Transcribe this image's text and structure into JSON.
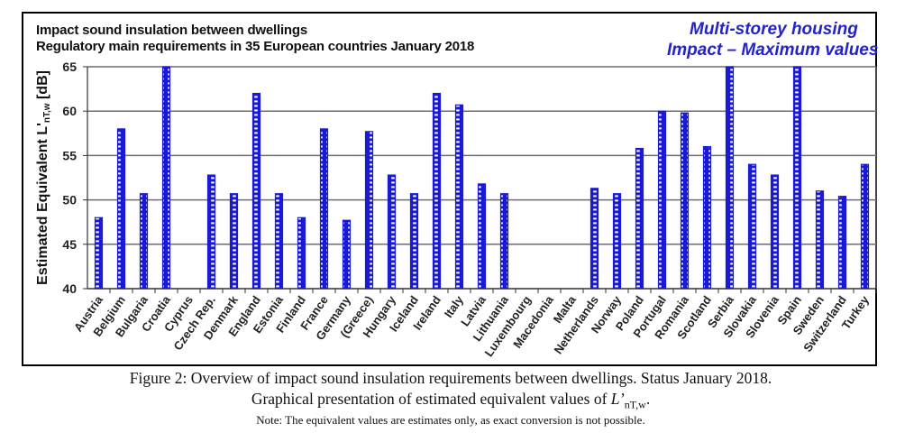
{
  "chart_data": {
    "type": "bar",
    "title": "Impact sound insulation between dwellings",
    "subtitle": "Regulatory main requirements in 35 European countries January 2018",
    "annotation": [
      "Multi-storey housing",
      "Impact – Maximum values"
    ],
    "xlabel": "",
    "ylabel": "Estimated Equivalent L'nT,w [dB]",
    "ylabel_parts": {
      "main": "Estimated Equivalent L'",
      "sub": "nT,w",
      "unit": " [dB]"
    },
    "ylim": [
      40,
      65
    ],
    "yticks": [
      40,
      45,
      50,
      55,
      60,
      65
    ],
    "grid": true,
    "legend": "none",
    "bar_color": "#1a1ad6",
    "categories": [
      "Austria",
      "Belgium",
      "Bulgaria",
      "Croatia",
      "Cyprus",
      "Czech Rep.",
      "Denmark",
      "England",
      "Estonia",
      "Finland",
      "France",
      "Germany",
      "(Greece)",
      "Hungary",
      "Iceland",
      "Ireland",
      "Italy",
      "Latvia",
      "Lithuania",
      "Luxembourg",
      "Macedonia",
      "Malta",
      "Netherlands",
      "Norway",
      "Poland",
      "Portugal",
      "Romania",
      "Scotland",
      "Serbia",
      "Slovakia",
      "Slovenia",
      "Spain",
      "Sweden",
      "Switzerland",
      "Turkey"
    ],
    "values": [
      48,
      58,
      50.7,
      65,
      null,
      52.8,
      50.7,
      62,
      50.7,
      48,
      58,
      47.7,
      57.7,
      52.8,
      50.7,
      62,
      60.7,
      51.8,
      50.7,
      null,
      null,
      null,
      51.3,
      50.7,
      55.8,
      60,
      59.8,
      56,
      65,
      54,
      52.8,
      65,
      51,
      50.4,
      54
    ]
  },
  "caption": {
    "line1": "Figure 2: Overview of impact sound insulation requirements between dwellings. Status January 2018.",
    "line2_text": "Graphical presentation of estimated equivalent values of ",
    "line2_symbol": "L’",
    "line2_sub": "nT,w",
    "line2_end": ".",
    "line3": "Note: The equivalent values are estimates only, as exact conversion is not possible."
  }
}
